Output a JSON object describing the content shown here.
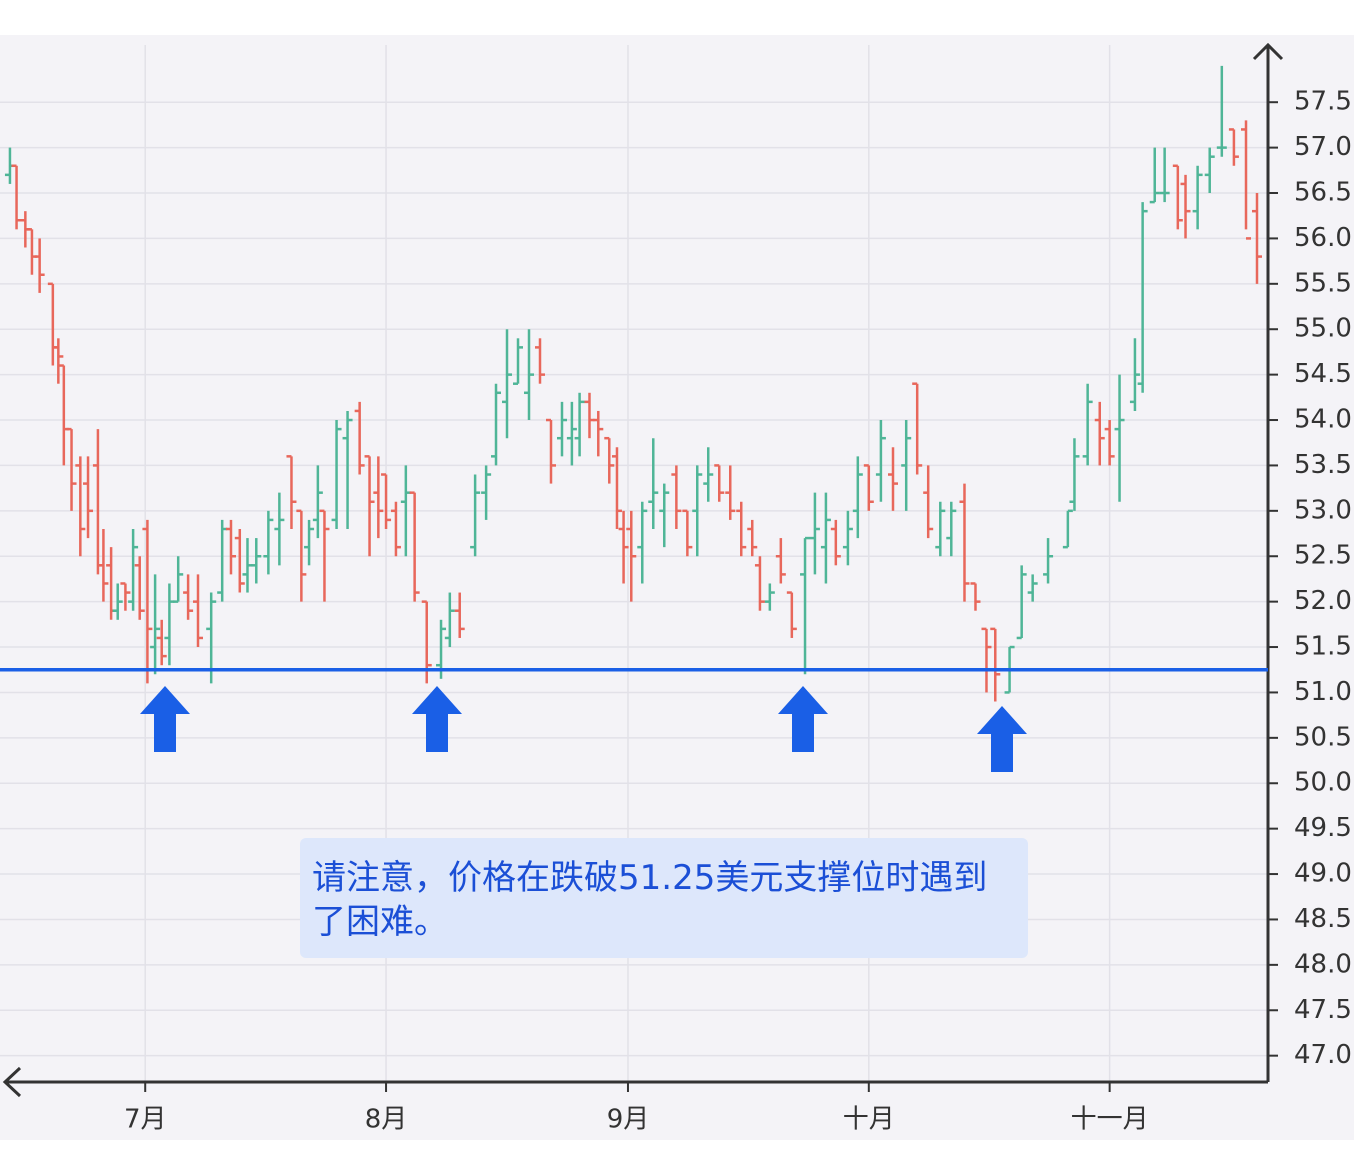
{
  "chart_data": {
    "type": "ohlc",
    "x": [
      0,
      0.6,
      1.4,
      2,
      2.7,
      3.9,
      4.4,
      4.9,
      5.6,
      6.4,
      7.1,
      8,
      8.5,
      9.2,
      9.8,
      10.5,
      11.2,
      11.8,
      12.5,
      13.2,
      13.8,
      14.5,
      15.3,
      16.2,
      17.1,
      18.3,
      19.3,
      20.1,
      20.9,
      21.6,
      22.4,
      23.5,
      24.5,
      25.6,
      26.5,
      27.2,
      28,
      28.6,
      29.7,
      30.7,
      31.8,
      32.7,
      33.5,
      34.2,
      35.1,
      36,
      36.8,
      37.9,
      39.2,
      40,
      40.9,
      42.3,
      43.3,
      44.2,
      45.2,
      46.2,
      47.2,
      48.2,
      49.2,
      50.2,
      51.1,
      51.8,
      52.7,
      53.5,
      54.5,
      55.2,
      55.8,
      56.5,
      57.5,
      58.5,
      59.5,
      60.6,
      61.6,
      62.5,
      63.5,
      64.5,
      65.5,
      66.5,
      67.5,
      68.2,
      69.1,
      70.1,
      71.1,
      72.3,
      73.2,
      74.2,
      75.1,
      76.2,
      77.1,
      78.1,
      79.2,
      80.3,
      81.5,
      82.5,
      83.5,
      84.6,
      85.6,
      86.8,
      87.8,
      88.8,
      89.6,
      90.9,
      92,
      93,
      94.4,
      96.2,
      96.8,
      98,
      99.1,
      100,
      100.9,
      102.3,
      103,
      104.1,
      105,
      106.2,
      106.9,
      108,
      109.1,
      110.2,
      111.3,
      112.4,
      113.4
    ],
    "open": [
      56.7,
      56.8,
      56.2,
      56.1,
      55.8,
      55.5,
      54.8,
      54.6,
      53.9,
      53.5,
      53.3,
      53.5,
      52.4,
      52.4,
      51.9,
      52.2,
      52.0,
      52.4,
      52.8,
      51.5,
      51.6,
      51.6,
      52.0,
      52.1,
      52.0,
      51.7,
      52.1,
      52.8,
      52.7,
      52.3,
      52.4,
      52.5,
      52.8,
      53.6,
      53.0,
      52.6,
      52.9,
      53.0,
      52.9,
      53.8,
      54.1,
      53.6,
      53.2,
      53.4,
      53.0,
      53.1,
      53.2,
      52.0,
      51.3,
      51.6,
      51.9,
      52.6,
      53.2,
      53.6,
      54.2,
      54.4,
      54.3,
      54.8,
      54.0,
      53.8,
      53.8,
      53.8,
      54.2,
      54.0,
      53.8,
      53.6,
      52.8,
      52.8,
      52.6,
      53.1,
      53.0,
      53.4,
      53.0,
      53.0,
      53.3,
      53.5,
      53.2,
      53.0,
      52.8,
      52.4,
      52.0,
      52.5,
      52.1,
      52.3,
      52.7,
      52.6,
      52.8,
      52.6,
      53.0,
      53.5,
      53.4,
      53.4,
      53.5,
      54.4,
      53.2,
      52.6,
      52.7,
      53.1,
      52.2,
      51.7,
      51.7,
      51.0,
      51.6,
      52.1,
      52.3,
      52.6,
      53.1,
      53.6,
      54.0,
      53.9,
      53.9,
      54.2,
      54.4,
      56.4,
      56.5,
      56.8,
      56.6,
      56.3,
      56.7,
      57.0,
      57.2,
      57.2,
      56.3
    ],
    "high": [
      57.0,
      56.8,
      56.3,
      56.1,
      56.0,
      55.5,
      54.9,
      54.6,
      53.9,
      53.6,
      53.6,
      53.9,
      52.8,
      52.6,
      52.2,
      52.2,
      52.8,
      52.5,
      52.9,
      52.3,
      51.8,
      52.2,
      52.5,
      52.3,
      52.3,
      52.1,
      52.9,
      52.9,
      52.8,
      52.7,
      52.7,
      53.0,
      53.2,
      53.6,
      53.0,
      52.9,
      53.5,
      53.0,
      54.0,
      54.1,
      54.2,
      53.6,
      53.6,
      53.4,
      53.1,
      53.5,
      53.2,
      52.0,
      51.8,
      52.1,
      52.1,
      53.4,
      53.5,
      54.4,
      55.0,
      54.9,
      55.0,
      54.9,
      54.0,
      54.2,
      54.2,
      54.3,
      54.3,
      54.1,
      53.8,
      53.7,
      53.0,
      53.0,
      53.1,
      53.8,
      53.3,
      53.5,
      53.0,
      53.5,
      53.7,
      53.5,
      53.5,
      53.1,
      52.9,
      52.5,
      52.2,
      52.7,
      52.1,
      52.7,
      53.2,
      53.2,
      52.9,
      53.0,
      53.6,
      53.5,
      54.0,
      53.7,
      54.0,
      54.4,
      53.5,
      53.1,
      53.1,
      53.3,
      52.2,
      51.7,
      51.7,
      51.5,
      52.4,
      52.3,
      52.7,
      53.0,
      53.8,
      54.4,
      54.2,
      54.0,
      54.5,
      54.9,
      56.4,
      57.0,
      57.0,
      56.8,
      56.7,
      56.8,
      57.0,
      57.9,
      57.2,
      57.3,
      56.5
    ],
    "low": [
      56.6,
      56.1,
      55.9,
      55.6,
      55.4,
      54.6,
      54.4,
      53.5,
      53.0,
      52.5,
      52.7,
      52.3,
      52.0,
      51.8,
      51.8,
      51.9,
      51.9,
      51.8,
      51.1,
      51.2,
      51.3,
      51.3,
      52.0,
      51.8,
      51.5,
      51.1,
      52.0,
      52.3,
      52.1,
      52.1,
      52.2,
      52.3,
      52.4,
      52.8,
      52.0,
      52.4,
      52.7,
      52.0,
      52.8,
      52.8,
      53.4,
      52.5,
      52.7,
      52.8,
      52.5,
      52.5,
      52.0,
      51.1,
      51.15,
      51.5,
      51.6,
      52.5,
      52.9,
      53.5,
      53.8,
      54.4,
      54.0,
      54.4,
      53.3,
      53.6,
      53.5,
      53.6,
      53.8,
      53.6,
      53.3,
      52.8,
      52.2,
      52.0,
      52.2,
      52.8,
      52.6,
      52.8,
      52.5,
      52.5,
      53.1,
      53.1,
      52.9,
      52.5,
      52.5,
      51.9,
      51.9,
      52.2,
      51.6,
      51.2,
      52.3,
      52.2,
      52.4,
      52.4,
      52.7,
      53.0,
      53.1,
      53.0,
      53.0,
      53.4,
      52.7,
      52.5,
      52.5,
      52.0,
      51.9,
      51.0,
      50.9,
      51.0,
      51.6,
      52.0,
      52.2,
      52.6,
      53.0,
      53.5,
      53.5,
      53.5,
      53.1,
      54.1,
      54.3,
      56.4,
      56.4,
      56.1,
      56.0,
      56.1,
      56.5,
      56.9,
      56.8,
      56.1,
      55.5
    ],
    "close": [
      56.8,
      56.2,
      56.1,
      55.8,
      55.6,
      54.8,
      54.7,
      53.9,
      53.3,
      52.8,
      53.0,
      52.4,
      52.2,
      51.9,
      52.0,
      52.1,
      52.6,
      51.9,
      51.7,
      51.7,
      51.4,
      52.0,
      52.3,
      51.9,
      51.6,
      52.0,
      52.8,
      52.5,
      52.2,
      52.4,
      52.5,
      52.9,
      52.9,
      53.1,
      52.3,
      52.8,
      53.2,
      52.8,
      53.9,
      54.0,
      53.5,
      53.1,
      53.0,
      52.9,
      52.6,
      53.2,
      52.1,
      51.3,
      51.7,
      51.9,
      51.7,
      53.2,
      53.4,
      54.3,
      54.5,
      54.8,
      54.5,
      54.5,
      53.5,
      54.0,
      53.9,
      54.2,
      54.0,
      53.9,
      53.5,
      53.0,
      52.6,
      52.5,
      53.0,
      53.2,
      53.2,
      53.0,
      52.6,
      53.4,
      53.4,
      53.2,
      53.0,
      52.6,
      52.6,
      52.0,
      52.1,
      52.3,
      51.7,
      52.7,
      52.8,
      52.9,
      52.5,
      52.8,
      53.4,
      53.1,
      53.8,
      53.3,
      53.8,
      53.5,
      52.8,
      53.0,
      53.0,
      52.2,
      52.0,
      51.5,
      51.2,
      51.5,
      52.3,
      52.2,
      52.5,
      53.0,
      53.6,
      54.2,
      53.8,
      53.6,
      54.0,
      54.5,
      56.3,
      56.5,
      56.5,
      56.2,
      56.3,
      56.7,
      56.9,
      57.0,
      56.9,
      56.0,
      55.8
    ],
    "up_color": "#4fb597",
    "down_color": "#e8675b",
    "xlim": [
      -0.45,
      114.4
    ],
    "ylim": [
      46.71,
      58.13
    ],
    "xticks": [
      {
        "value": 12.3,
        "label": "7月"
      },
      {
        "value": 34.2,
        "label": "8月"
      },
      {
        "value": 56.2,
        "label": "9月"
      },
      {
        "value": 78.1,
        "label": "十月"
      },
      {
        "value": 100,
        "label": "十一月"
      }
    ],
    "yticks": [
      {
        "value": 47,
        "label": "47.0"
      },
      {
        "value": 47.5,
        "label": "47.5"
      },
      {
        "value": 48,
        "label": "48.0"
      },
      {
        "value": 48.5,
        "label": "48.5"
      },
      {
        "value": 49,
        "label": "49.0"
      },
      {
        "value": 49.5,
        "label": "49.5"
      },
      {
        "value": 50,
        "label": "50.0"
      },
      {
        "value": 50.5,
        "label": "50.5"
      },
      {
        "value": 51,
        "label": "51.0"
      },
      {
        "value": 51.5,
        "label": "51.5"
      },
      {
        "value": 52,
        "label": "52.0"
      },
      {
        "value": 52.5,
        "label": "52.5"
      },
      {
        "value": 53,
        "label": "53.0"
      },
      {
        "value": 53.5,
        "label": "53.5"
      },
      {
        "value": 54,
        "label": "54.0"
      },
      {
        "value": 54.5,
        "label": "54.5"
      },
      {
        "value": 55,
        "label": "55.0"
      },
      {
        "value": 55.5,
        "label": "55.5"
      },
      {
        "value": 56,
        "label": "56.0"
      },
      {
        "value": 56.5,
        "label": "56.5"
      },
      {
        "value": 57,
        "label": "57.0"
      },
      {
        "value": 57.5,
        "label": "57.5"
      }
    ],
    "grid": true,
    "support": {
      "value": 51.25,
      "color": "#1a5fe6"
    },
    "annotation": "请注意，价格在跌破51.25美元支撑位时遇到了困难。"
  }
}
